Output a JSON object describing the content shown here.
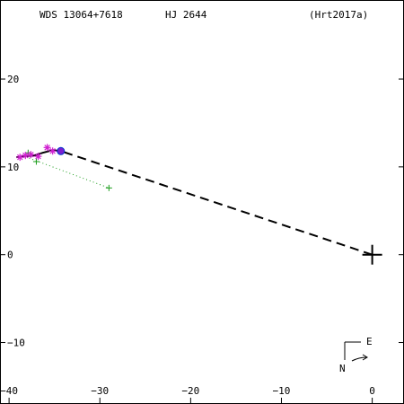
{
  "header": {
    "wds_id": "WDS 13064+7618",
    "discoverer": "HJ 2644",
    "reference": "(Hrt2017a)"
  },
  "compass": {
    "east_label": "E",
    "north_label": "N"
  },
  "chart_data": {
    "type": "scatter",
    "title": "",
    "xlabel": "",
    "ylabel": "",
    "xlim": [
      -41,
      3.5
    ],
    "ylim": [
      -17,
      29
    ],
    "x_ticks": [
      {
        "value": -40,
        "label": "−40"
      },
      {
        "value": -30,
        "label": "−30"
      },
      {
        "value": -20,
        "label": "−20"
      },
      {
        "value": -10,
        "label": "−10"
      },
      {
        "value": 0,
        "label": "0"
      }
    ],
    "y_ticks": [
      {
        "value": 20,
        "label": "20"
      },
      {
        "value": 10,
        "label": "10"
      },
      {
        "value": 0,
        "label": "0"
      },
      {
        "value": -10,
        "label": "−10"
      }
    ],
    "primary": {
      "x": 0,
      "y": 0
    },
    "orbit_arc": [
      {
        "x": -39.2,
        "y": 11.1
      },
      {
        "x": -38.2,
        "y": 11.2
      },
      {
        "x": -37.2,
        "y": 11.3
      },
      {
        "x": -36.3,
        "y": 11.6
      },
      {
        "x": -35.2,
        "y": 11.9
      },
      {
        "x": -34.3,
        "y": 11.8
      }
    ],
    "periastron_line": [
      {
        "x": 0,
        "y": 0
      },
      {
        "x": -34.3,
        "y": 11.8
      }
    ],
    "residual_line": [
      {
        "x": -37.8,
        "y": 11.0
      },
      {
        "x": -29.0,
        "y": 7.6
      }
    ],
    "series": [
      {
        "marker": "plus",
        "color": "#1a9c1a",
        "points": [
          {
            "x": -37.9,
            "y": 11.6
          },
          {
            "x": -37.0,
            "y": 10.6
          },
          {
            "x": -29.0,
            "y": 7.6
          }
        ]
      },
      {
        "marker": "asterisk",
        "color": "#d020d0",
        "points": [
          {
            "x": -38.8,
            "y": 11.1
          },
          {
            "x": -38.2,
            "y": 11.3
          },
          {
            "x": -37.6,
            "y": 11.4
          },
          {
            "x": -36.8,
            "y": 11.2
          },
          {
            "x": -35.8,
            "y": 12.2
          },
          {
            "x": -35.2,
            "y": 11.8
          }
        ]
      },
      {
        "marker": "dot",
        "color": "#7a1fd0",
        "points": [
          {
            "x": -34.3,
            "y": 11.8
          }
        ]
      }
    ],
    "grid": false,
    "legend": "none"
  }
}
